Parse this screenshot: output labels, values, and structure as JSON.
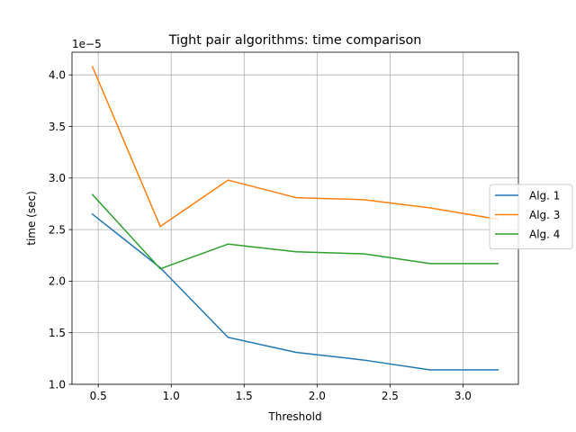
{
  "chart_data": {
    "type": "line",
    "title": "Tight pair algorithms: time comparison",
    "xlabel": "Threshold",
    "ylabel": "time (sec)",
    "y_offset_label": "1e−5",
    "x": [
      0.46,
      0.925,
      1.39,
      1.855,
      2.32,
      2.775,
      3.24
    ],
    "xlim": [
      0.32,
      3.38
    ],
    "ylim": [
      1e-05,
      4.22e-05
    ],
    "x_ticks": [
      0.5,
      1.0,
      1.5,
      2.0,
      2.5,
      3.0
    ],
    "x_tick_labels": [
      "0.5",
      "1.0",
      "1.5",
      "2.0",
      "2.5",
      "3.0"
    ],
    "y_ticks": [
      1e-05,
      1.5e-05,
      2e-05,
      2.5e-05,
      3e-05,
      3.5e-05,
      4e-05
    ],
    "y_tick_labels": [
      "1.0",
      "1.5",
      "2.0",
      "2.5",
      "3.0",
      "3.5",
      "4.0"
    ],
    "grid": true,
    "legend_position": "center-right",
    "series": [
      {
        "name": "Alg. 1",
        "color": "#1f77b4",
        "values": [
          2.65e-05,
          2.13e-05,
          1.455e-05,
          1.31e-05,
          1.235e-05,
          1.14e-05,
          1.14e-05
        ]
      },
      {
        "name": "Alg. 3",
        "color": "#ff7f0e",
        "values": [
          4.08e-05,
          2.53e-05,
          2.98e-05,
          2.81e-05,
          2.79e-05,
          2.71e-05,
          2.6e-05
        ]
      },
      {
        "name": "Alg. 4",
        "color": "#2ca02c",
        "values": [
          2.84e-05,
          2.12e-05,
          2.36e-05,
          2.285e-05,
          2.265e-05,
          2.17e-05,
          2.17e-05
        ]
      }
    ]
  }
}
